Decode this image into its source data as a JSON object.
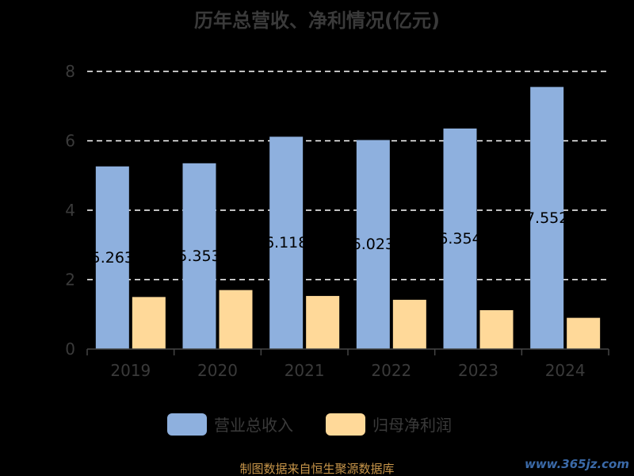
{
  "chart_data": {
    "type": "bar",
    "title": "历年总营收、净利情况(亿元)",
    "categories": [
      "2019",
      "2020",
      "2021",
      "2022",
      "2023",
      "2024"
    ],
    "series": [
      {
        "name": "营业总收入",
        "values": [
          5.263,
          5.353,
          6.118,
          6.023,
          6.354,
          7.552
        ],
        "labels": [
          "5.263",
          "5.353",
          "6.118",
          "6.023",
          "6.354",
          "7.552"
        ],
        "color": "#8eb0de"
      },
      {
        "name": "归母净利润",
        "values": [
          1.5,
          1.7,
          1.53,
          1.42,
          1.12,
          0.9
        ],
        "color": "#ffd999"
      }
    ],
    "yticks": [
      "0",
      "2",
      "4",
      "6",
      "8"
    ],
    "ylim": [
      0,
      8
    ],
    "grid": true,
    "legend": "bottom"
  },
  "footer": {
    "source": "制图数据来自恒生聚源数据库",
    "watermark": "www.365jz.com"
  },
  "colors": {
    "background": "#000000",
    "gridline": "#ffffff",
    "axis": "#444444"
  }
}
